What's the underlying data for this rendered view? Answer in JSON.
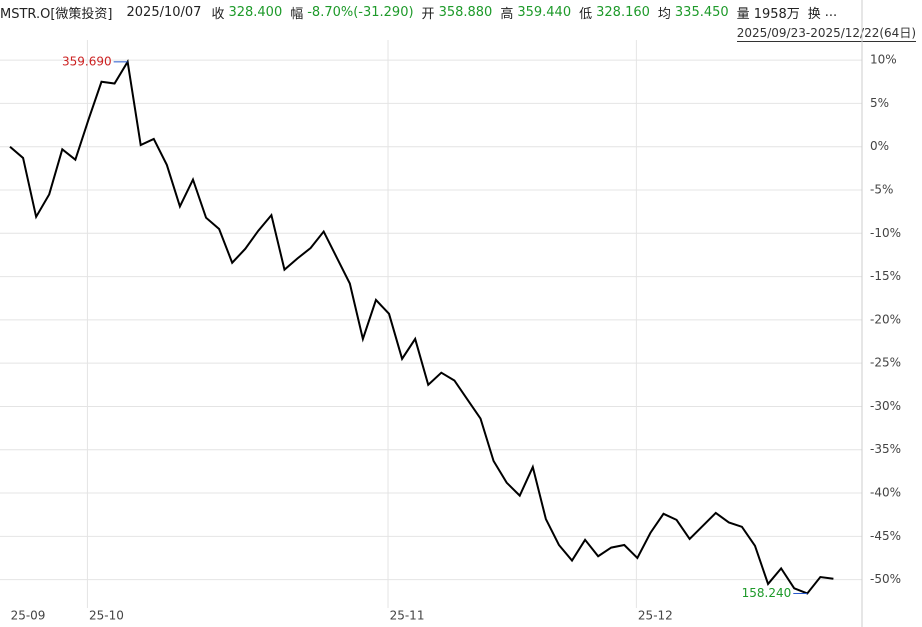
{
  "header": {
    "symbol": "MSTR.O[微策投资]",
    "date": "2025/10/07",
    "items": [
      {
        "label": "收",
        "value": "328.400"
      },
      {
        "label": "幅",
        "value": "-8.70%(-31.290)"
      },
      {
        "label": "开",
        "value": "358.880"
      },
      {
        "label": "高",
        "value": "359.440"
      },
      {
        "label": "低",
        "value": "328.160"
      },
      {
        "label": "均",
        "value": "335.450"
      },
      {
        "label": "量",
        "value": "1958万"
      },
      {
        "label": "换",
        "value": "..."
      }
    ],
    "range": "2025/09/23-2025/12/22(64日)"
  },
  "chart_data": {
    "type": "line",
    "color": "#000000",
    "categories": [
      "25-09",
      null,
      null,
      null,
      null,
      null,
      "25-10",
      null,
      null,
      null,
      null,
      null,
      null,
      null,
      null,
      null,
      null,
      null,
      null,
      null,
      null,
      null,
      null,
      null,
      null,
      null,
      null,
      null,
      null,
      "25-11",
      null,
      null,
      null,
      null,
      null,
      null,
      null,
      null,
      null,
      null,
      null,
      null,
      null,
      null,
      null,
      null,
      null,
      null,
      "25-12",
      null,
      null,
      null,
      null,
      null,
      null,
      null,
      null,
      null,
      null,
      null,
      null,
      null,
      null,
      null
    ],
    "values": [
      0,
      -1.3,
      -8.1,
      -5.5,
      -0.3,
      -1.5,
      3.1,
      7.5,
      7.3,
      9.8,
      0.2,
      0.9,
      -2.1,
      -6.9,
      -3.8,
      -8.2,
      -9.5,
      -13.4,
      -11.8,
      -9.7,
      -7.9,
      -14.2,
      -12.9,
      -11.7,
      -9.8,
      -12.8,
      -15.8,
      -22.2,
      -17.7,
      -19.3,
      -24.5,
      -22.2,
      -27.5,
      -26.1,
      -27.0,
      -29.2,
      -31.4,
      -36.3,
      -38.8,
      -40.3,
      -37.0,
      -43.0,
      -46.0,
      -47.8,
      -45.4,
      -47.3,
      -46.3,
      -46.0,
      -47.5,
      -44.6,
      -42.4,
      -43.1,
      -45.3,
      -43.8,
      -42.3,
      -43.4,
      -43.9,
      -46.1,
      -50.5,
      -48.7,
      -51.0,
      -51.6,
      -49.7,
      -49.9
    ],
    "high_label": "359.690",
    "low_label": "158.240",
    "ylim": [
      -52.7,
      11.4
    ],
    "yticks": [
      {
        "value": 10,
        "label": "10%"
      },
      {
        "value": 5,
        "label": "5%"
      },
      {
        "value": 0,
        "label": "0%"
      },
      {
        "value": -5,
        "label": "-5%"
      },
      {
        "value": -10,
        "label": "-10%"
      },
      {
        "value": -15,
        "label": "-15%"
      },
      {
        "value": -20,
        "label": "-20%"
      },
      {
        "value": -25,
        "label": "-25%"
      },
      {
        "value": -30,
        "label": "-30%"
      },
      {
        "value": -35,
        "label": "-35%"
      },
      {
        "value": -40,
        "label": "-40%"
      },
      {
        "value": -45,
        "label": "-45%"
      },
      {
        "value": -50,
        "label": "-50%"
      }
    ],
    "grid": true
  }
}
